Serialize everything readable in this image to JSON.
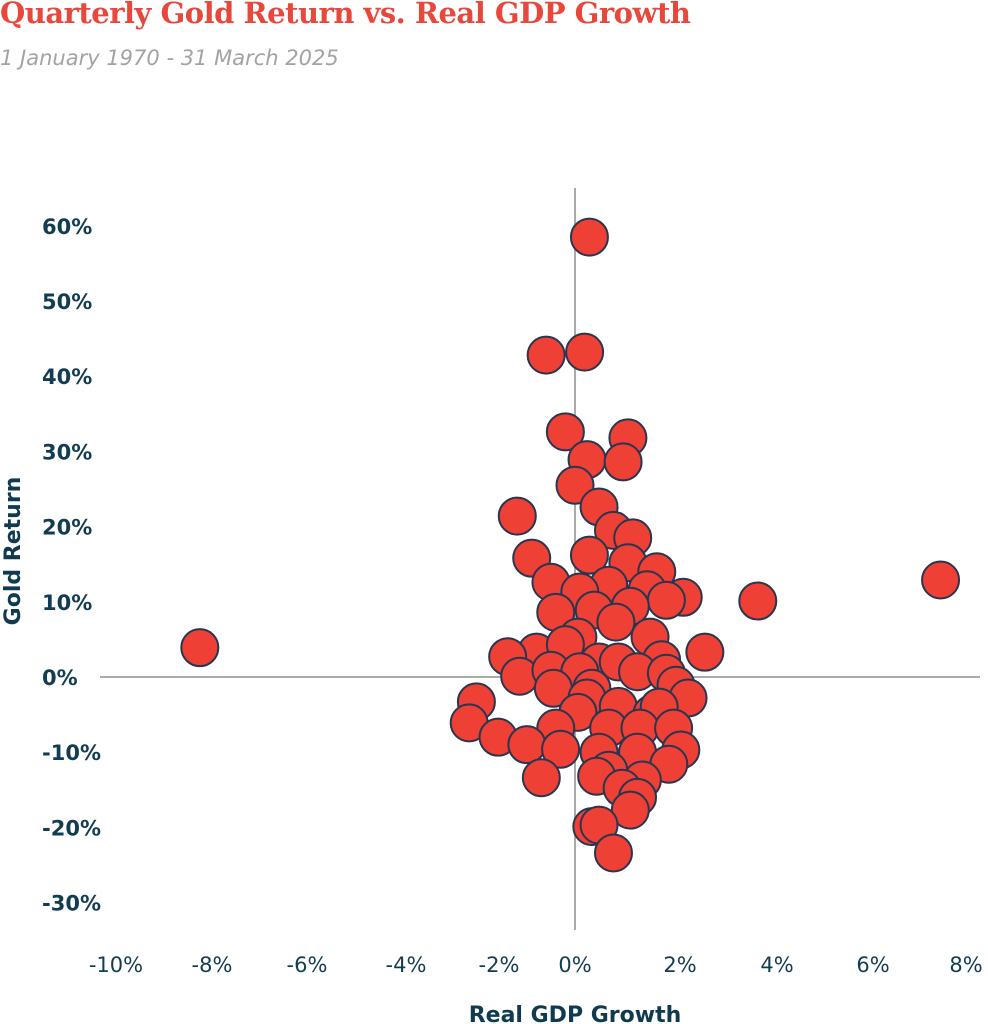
{
  "chart_data": {
    "type": "scatter",
    "title": "Quarterly Gold Return vs. Real GDP Growth",
    "subtitle": "1 January 1970 - 31 March 2025",
    "xlabel": "Real GDP Growth",
    "ylabel": "Gold Return",
    "xlim": [
      -10,
      8
    ],
    "ylim": [
      -30,
      60
    ],
    "x_ticks": [
      "-10%",
      "-8%",
      "-6%",
      "-4%",
      "-2%",
      "0%",
      "2%",
      "4%",
      "6%",
      "8%"
    ],
    "x_tick_values": [
      -10,
      -8,
      -6,
      -4,
      -2,
      0,
      2,
      4,
      6,
      8
    ],
    "y_ticks": [
      "60%",
      "50%",
      "40%",
      "30%",
      "20%",
      "10%",
      "0%",
      "-10%",
      "-20%",
      "-30%"
    ],
    "y_tick_values": [
      60,
      50,
      40,
      30,
      20,
      10,
      0,
      -10,
      -20,
      -30
    ],
    "grid": false,
    "zero_lines": true,
    "colors": {
      "marker_fill": "#ee4035",
      "marker_edge": "#2a3550",
      "title": "#e8473c",
      "axis_text": "#123c52",
      "axis_line": "#aaaaaa"
    },
    "points": [
      {
        "x": -7.8,
        "y": 3.9
      },
      {
        "x": 0.3,
        "y": 58.5
      },
      {
        "x": -0.6,
        "y": 42.8
      },
      {
        "x": 0.2,
        "y": 43.2
      },
      {
        "x": -0.2,
        "y": 32.6
      },
      {
        "x": 1.1,
        "y": 31.8
      },
      {
        "x": 0.25,
        "y": 28.9
      },
      {
        "x": 1.0,
        "y": 28.6
      },
      {
        "x": 0.0,
        "y": 25.5
      },
      {
        "x": 0.5,
        "y": 22.6
      },
      {
        "x": -1.2,
        "y": 21.4
      },
      {
        "x": 0.8,
        "y": 19.5
      },
      {
        "x": 1.2,
        "y": 18.5
      },
      {
        "x": -0.9,
        "y": 15.8
      },
      {
        "x": 0.3,
        "y": 16.2
      },
      {
        "x": 1.1,
        "y": 15.2
      },
      {
        "x": 1.7,
        "y": 14.0
      },
      {
        "x": -0.5,
        "y": 12.6
      },
      {
        "x": 0.7,
        "y": 12.2
      },
      {
        "x": 0.1,
        "y": 11.3
      },
      {
        "x": 1.5,
        "y": 11.6
      },
      {
        "x": 2.25,
        "y": 10.6
      },
      {
        "x": 1.9,
        "y": 10.2
      },
      {
        "x": 3.8,
        "y": 10.1
      },
      {
        "x": 7.6,
        "y": 12.9
      },
      {
        "x": -0.4,
        "y": 8.6
      },
      {
        "x": 0.4,
        "y": 8.9
      },
      {
        "x": 1.15,
        "y": 9.4
      },
      {
        "x": 0.85,
        "y": 7.3
      },
      {
        "x": 0.06,
        "y": 5.3
      },
      {
        "x": 1.56,
        "y": 5.3
      },
      {
        "x": -0.8,
        "y": 3.3
      },
      {
        "x": -1.4,
        "y": 2.7
      },
      {
        "x": 2.7,
        "y": 3.3
      },
      {
        "x": -0.2,
        "y": 4.3
      },
      {
        "x": 0.5,
        "y": 2.0
      },
      {
        "x": 0.9,
        "y": 2.0
      },
      {
        "x": 1.8,
        "y": 2.3
      },
      {
        "x": -1.15,
        "y": 0.1
      },
      {
        "x": -0.5,
        "y": 0.9
      },
      {
        "x": 0.1,
        "y": 0.7
      },
      {
        "x": 1.3,
        "y": 0.7
      },
      {
        "x": 1.9,
        "y": 0.5
      },
      {
        "x": 2.1,
        "y": -1.1
      },
      {
        "x": -0.45,
        "y": -1.5
      },
      {
        "x": 0.35,
        "y": -1.5
      },
      {
        "x": 2.35,
        "y": -2.8
      },
      {
        "x": 0.25,
        "y": -2.8
      },
      {
        "x": 0.9,
        "y": -3.9
      },
      {
        "x": -2.05,
        "y": -3.3
      },
      {
        "x": 0.06,
        "y": -4.7
      },
      {
        "x": 1.6,
        "y": -4.9
      },
      {
        "x": 1.75,
        "y": -4.0
      },
      {
        "x": -2.2,
        "y": -6.1
      },
      {
        "x": -0.4,
        "y": -6.8
      },
      {
        "x": 0.7,
        "y": -6.8
      },
      {
        "x": 1.35,
        "y": -6.8
      },
      {
        "x": 2.05,
        "y": -6.8
      },
      {
        "x": -1.6,
        "y": -8.0
      },
      {
        "x": -1.0,
        "y": -9.0
      },
      {
        "x": -0.3,
        "y": -9.6
      },
      {
        "x": 0.5,
        "y": -10.0
      },
      {
        "x": 1.3,
        "y": -10.0
      },
      {
        "x": 2.2,
        "y": -9.7
      },
      {
        "x": 1.95,
        "y": -11.6
      },
      {
        "x": 0.7,
        "y": -12.4
      },
      {
        "x": 1.4,
        "y": -13.7
      },
      {
        "x": -0.7,
        "y": -13.4
      },
      {
        "x": 0.45,
        "y": -13.2
      },
      {
        "x": 0.98,
        "y": -14.8
      },
      {
        "x": 1.3,
        "y": -16.0
      },
      {
        "x": 1.15,
        "y": -17.7
      },
      {
        "x": 0.35,
        "y": -19.9
      },
      {
        "x": 0.5,
        "y": -19.7
      },
      {
        "x": 0.8,
        "y": -23.4
      }
    ]
  }
}
